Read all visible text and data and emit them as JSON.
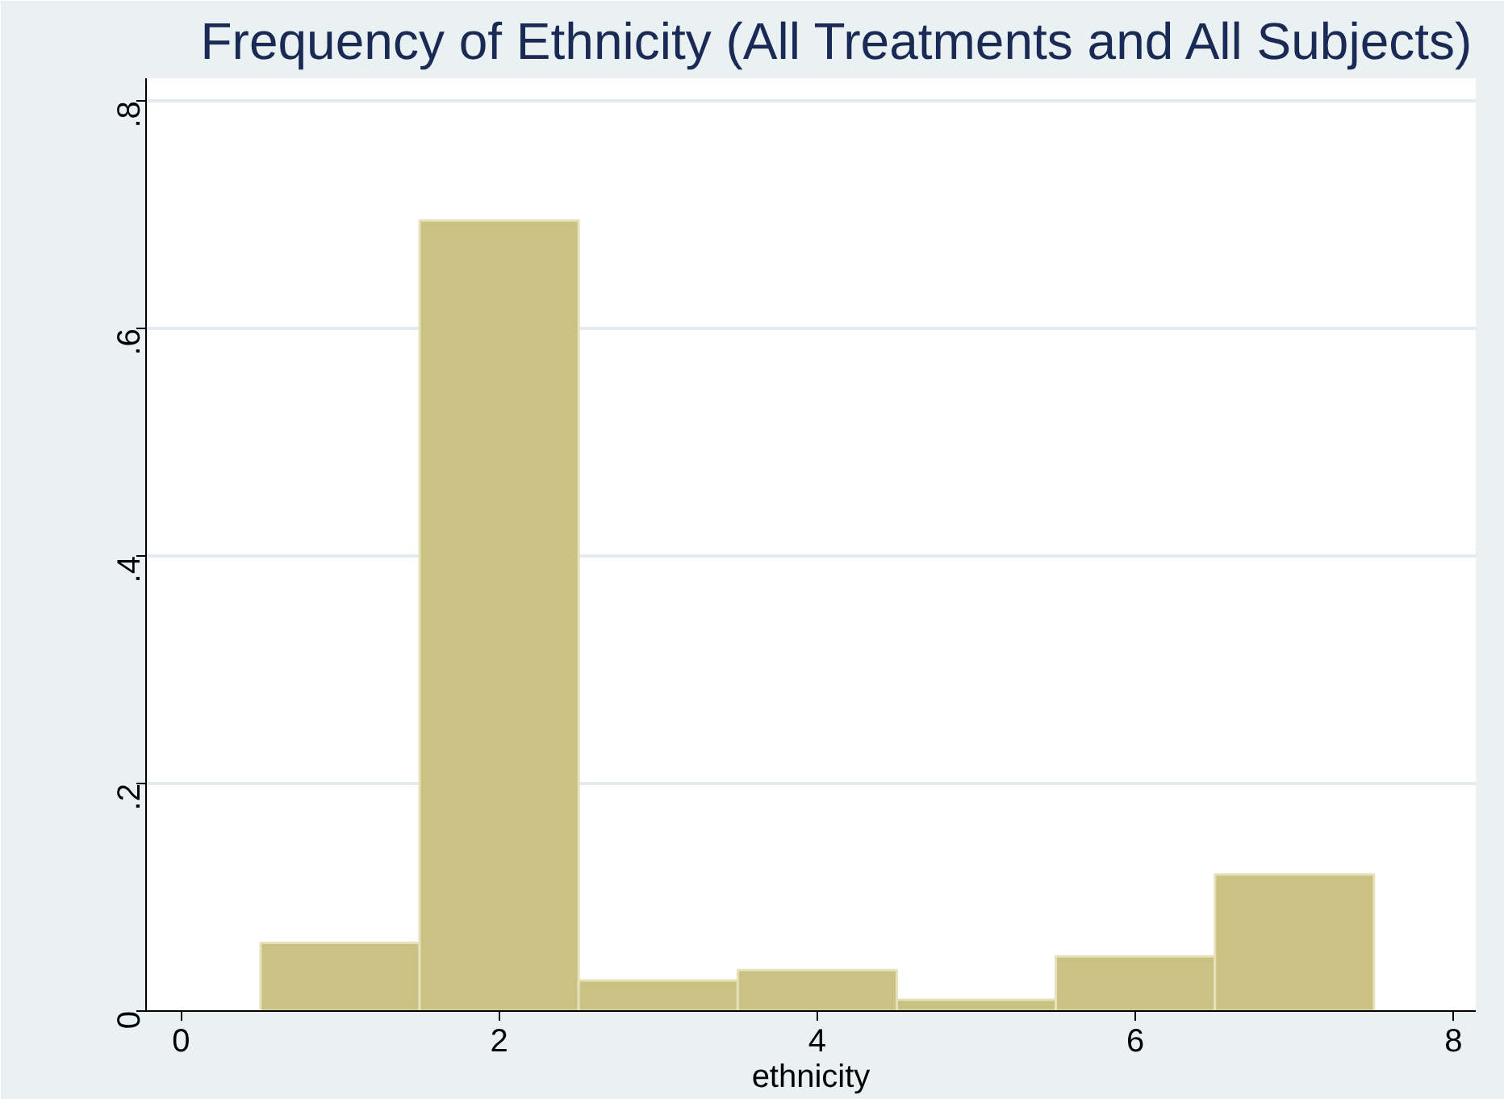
{
  "chart_data": {
    "type": "histogram",
    "title": "Frequency of Ethnicity (All Treatments and All Subjects)",
    "xlabel": "ethnicity",
    "bins": [
      0.5,
      1.5,
      2.5,
      3.5,
      4.5,
      5.5,
      6.5,
      7.5
    ],
    "values": [
      0.06,
      0.695,
      0.027,
      0.036,
      0.01,
      0.048,
      0.12
    ],
    "color": "#c9c283",
    "xlim": [
      -0.22,
      8.14
    ],
    "ylim": [
      0,
      0.82
    ],
    "xticks": [
      0,
      2,
      4,
      6,
      8
    ],
    "yticks": [
      {
        "value": 0,
        "label": "0"
      },
      {
        "value": 0.2,
        "label": ".2"
      },
      {
        "value": 0.4,
        "label": ".4"
      },
      {
        "value": 0.6,
        "label": ".6"
      },
      {
        "value": 0.8,
        "label": ".8"
      }
    ],
    "grid": "y"
  }
}
